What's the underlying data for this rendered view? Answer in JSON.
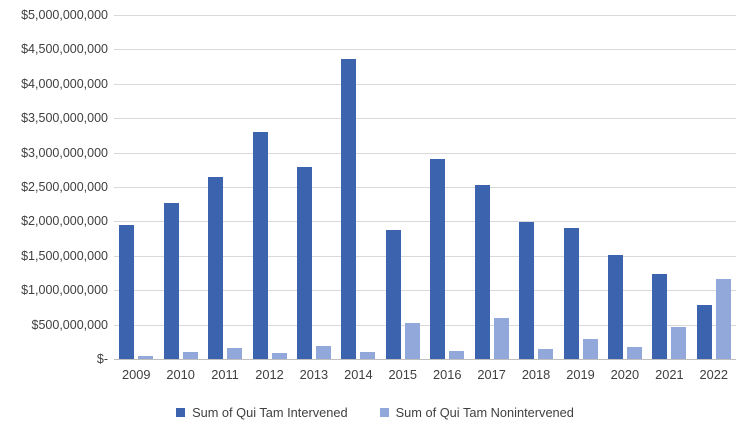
{
  "chart_data": {
    "type": "bar",
    "title": "",
    "xlabel": "",
    "ylabel": "",
    "categories": [
      "2009",
      "2010",
      "2011",
      "2012",
      "2013",
      "2014",
      "2015",
      "2016",
      "2017",
      "2018",
      "2019",
      "2020",
      "2021",
      "2022"
    ],
    "series": [
      {
        "name": "Sum of Qui Tam Intervened",
        "color": "#3B63AE",
        "values": [
          1950000000,
          2270000000,
          2640000000,
          3300000000,
          2790000000,
          4360000000,
          1880000000,
          2910000000,
          2530000000,
          1990000000,
          1900000000,
          1510000000,
          1230000000,
          780000000
        ]
      },
      {
        "name": "Sum of Qui Tam Nonintervened",
        "color": "#92A8DB",
        "values": [
          45000000,
          100000000,
          165000000,
          90000000,
          190000000,
          100000000,
          520000000,
          110000000,
          590000000,
          140000000,
          290000000,
          180000000,
          470000000,
          1170000000
        ]
      }
    ],
    "ylim": [
      0,
      5000000000
    ],
    "ytick_step": 500000000,
    "ytick_labels": [
      "$-",
      "$500,000,000",
      "$1,000,000,000",
      "$1,500,000,000",
      "$2,000,000,000",
      "$2,500,000,000",
      "$3,000,000,000",
      "$3,500,000,000",
      "$4,000,000,000",
      "$4,500,000,000",
      "$5,000,000,000"
    ],
    "grid": "horizontal",
    "legend_position": "bottom"
  },
  "colors": {
    "gridline": "#D9D9D9",
    "axisline": "#BFBFBF",
    "text": "#404040",
    "background": "#FFFFFF"
  }
}
